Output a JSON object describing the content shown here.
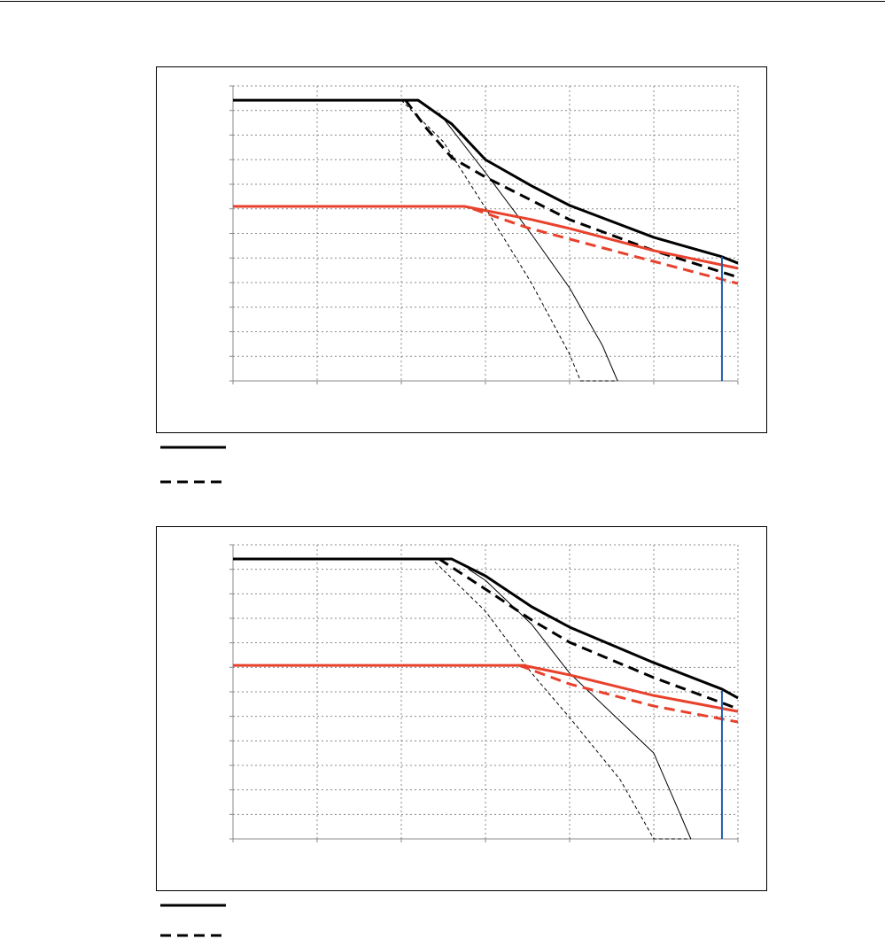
{
  "chart_data": [
    {
      "type": "line",
      "xlim": [
        0,
        6
      ],
      "ylim": [
        0,
        12
      ],
      "xticks": [
        0,
        1,
        2,
        3,
        4,
        5,
        6
      ],
      "yticks": [
        0,
        1,
        2,
        3,
        4,
        5,
        6,
        7,
        8,
        9,
        10,
        11,
        12
      ],
      "grid": true,
      "series": [
        {
          "color": "#000000",
          "width": 3,
          "dash": false,
          "x": [
            0,
            2.2,
            2.6,
            3.0,
            3.55,
            4.0,
            5.0,
            5.81,
            6.0
          ],
          "values": [
            11.42,
            11.42,
            10.45,
            9.0,
            7.93,
            7.14,
            5.84,
            5.05,
            4.79
          ]
        },
        {
          "color": "#000000",
          "width": 3,
          "dash": true,
          "x": [
            2.05,
            2.3,
            2.6,
            3.0,
            4.0,
            5.0,
            6.0
          ],
          "values": [
            11.42,
            10.27,
            9.08,
            8.29,
            6.56,
            5.3,
            4.22
          ]
        },
        {
          "color": "#000000",
          "width": 1,
          "dash": false,
          "x": [
            2.45,
            3.0,
            3.55,
            4.0,
            4.39,
            4.57
          ],
          "values": [
            10.9,
            8.47,
            5.95,
            3.78,
            1.44,
            0
          ]
        },
        {
          "color": "#000000",
          "width": 1,
          "dash": true,
          "x": [
            2.0,
            2.5,
            3.0,
            3.55,
            4.0,
            4.13,
            4.57
          ],
          "values": [
            11.42,
            9.73,
            7.03,
            3.96,
            1.08,
            0,
            0
          ]
        },
        {
          "color": "#e8412c",
          "width": 3,
          "dash": false,
          "x": [
            0,
            2.75,
            3.55,
            4.0,
            5.0,
            6.0
          ],
          "values": [
            7.1,
            7.1,
            6.56,
            6.2,
            5.3,
            4.58
          ]
        },
        {
          "color": "#e8412c",
          "width": 3,
          "dash": true,
          "x": [
            2.85,
            3.5,
            4.0,
            5.0,
            6.0
          ],
          "values": [
            7.0,
            6.23,
            5.77,
            4.86,
            3.96
          ]
        },
        {
          "color": "#1f5fae",
          "width": 2,
          "dash": false,
          "x": [
            5.81,
            5.81
          ],
          "values": [
            0,
            5.05
          ]
        }
      ]
    },
    {
      "type": "line",
      "xlim": [
        0,
        6
      ],
      "ylim": [
        0,
        12
      ],
      "xticks": [
        0,
        1,
        2,
        3,
        4,
        5,
        6
      ],
      "yticks": [
        0,
        1,
        2,
        3,
        4,
        5,
        6,
        7,
        8,
        9,
        10,
        11,
        12
      ],
      "grid": true,
      "series": [
        {
          "color": "#000000",
          "width": 3,
          "dash": false,
          "x": [
            0,
            2.6,
            3.0,
            3.55,
            4.0,
            5.0,
            5.81,
            6.0
          ],
          "values": [
            11.42,
            11.42,
            10.73,
            9.47,
            8.64,
            7.19,
            6.11,
            5.75
          ]
        },
        {
          "color": "#000000",
          "width": 3,
          "dash": true,
          "x": [
            2.45,
            3.0,
            3.55,
            4.0,
            5.0,
            6.0
          ],
          "values": [
            11.42,
            10.19,
            8.93,
            8.02,
            6.58,
            5.31
          ]
        },
        {
          "color": "#000000",
          "width": 1,
          "dash": false,
          "x": [
            2.8,
            3.0,
            3.55,
            4.0,
            5.0,
            5.34,
            5.44
          ],
          "values": [
            11.0,
            10.55,
            8.75,
            6.76,
            3.5,
            0.8,
            0
          ]
        },
        {
          "color": "#000000",
          "width": 1,
          "dash": true,
          "x": [
            2.4,
            3.0,
            3.55,
            4.0,
            4.6,
            5.0,
            5.44
          ],
          "values": [
            11.3,
            9.29,
            6.76,
            4.95,
            2.42,
            0,
            0
          ]
        },
        {
          "color": "#e8412c",
          "width": 3,
          "dash": false,
          "x": [
            0,
            3.45,
            4.0,
            5.0,
            6.0
          ],
          "values": [
            7.08,
            7.08,
            6.69,
            5.85,
            5.2
          ]
        },
        {
          "color": "#e8412c",
          "width": 3,
          "dash": true,
          "x": [
            3.4,
            4.0,
            5.0,
            6.0
          ],
          "values": [
            7.08,
            6.32,
            5.42,
            4.77
          ]
        },
        {
          "color": "#1f5fae",
          "width": 2,
          "dash": false,
          "x": [
            5.81,
            5.81
          ],
          "values": [
            0,
            6.04
          ]
        }
      ]
    }
  ]
}
